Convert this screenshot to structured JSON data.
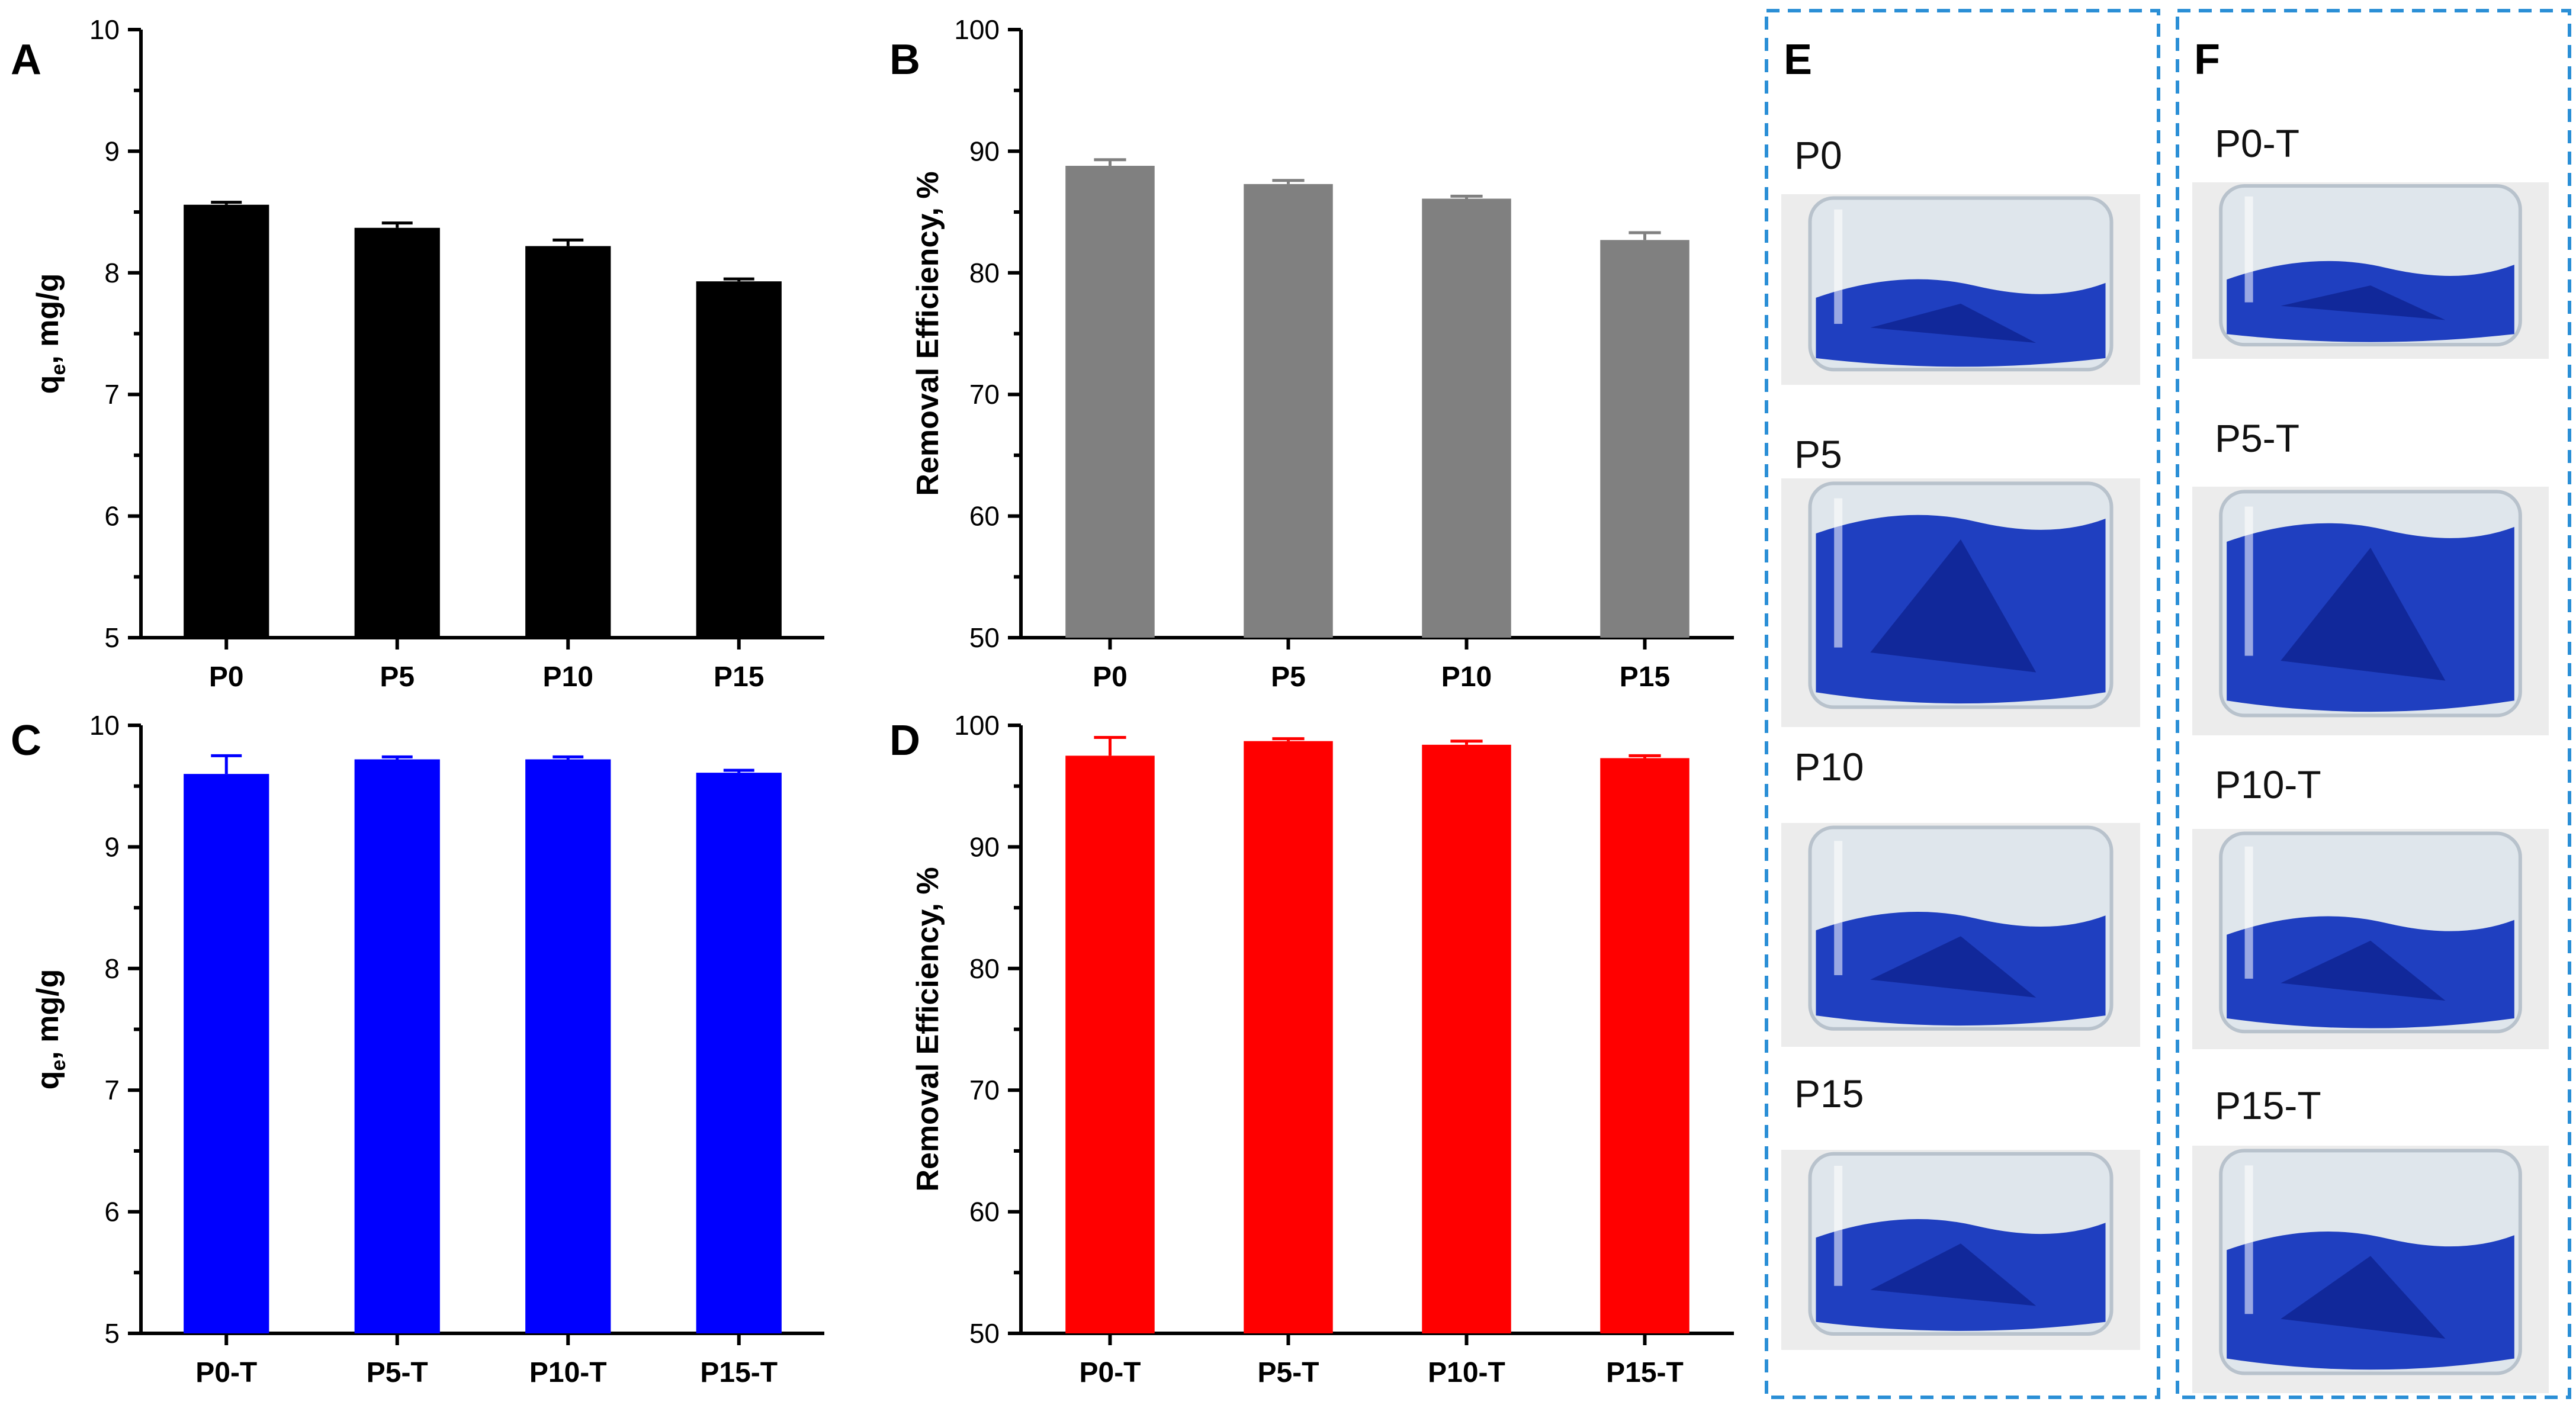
{
  "chart_data": [
    {
      "panel": "A",
      "type": "bar",
      "categories": [
        "P0",
        "P5",
        "P10",
        "P15"
      ],
      "values": [
        8.56,
        8.37,
        8.22,
        7.93
      ],
      "errors": [
        0.02,
        0.04,
        0.05,
        0.02
      ],
      "ylabel_main": "q",
      "ylabel_sub": "e",
      "ylabel_rest": ", mg/g",
      "ylim": [
        5,
        10
      ],
      "yticks": [
        "5",
        "6",
        "7",
        "8",
        "9",
        "10"
      ],
      "color": "#000000",
      "error_color": "#000000"
    },
    {
      "panel": "B",
      "type": "bar",
      "categories": [
        "P0",
        "P5",
        "P10",
        "P15"
      ],
      "values": [
        88.8,
        87.3,
        86.1,
        82.7
      ],
      "errors": [
        0.5,
        0.3,
        0.2,
        0.6
      ],
      "ylabel": "Removal Efficiency, %",
      "ylim": [
        50,
        100
      ],
      "yticks": [
        "50",
        "60",
        "70",
        "80",
        "90",
        "100"
      ],
      "color": "#808080",
      "error_color": "#808080"
    },
    {
      "panel": "C",
      "type": "bar",
      "categories": [
        "P0-T",
        "P5-T",
        "P10-T",
        "P15-T"
      ],
      "values": [
        9.6,
        9.72,
        9.72,
        9.61
      ],
      "errors": [
        0.15,
        0.02,
        0.02,
        0.02
      ],
      "ylabel_main": "q",
      "ylabel_sub": "e",
      "ylabel_rest": ", mg/g",
      "ylim": [
        5,
        10
      ],
      "yticks": [
        "5",
        "6",
        "7",
        "8",
        "9",
        "10"
      ],
      "color": "#0000ff",
      "error_color": "#0000ff"
    },
    {
      "panel": "D",
      "type": "bar",
      "categories": [
        "P0-T",
        "P5-T",
        "P10-T",
        "P15-T"
      ],
      "values": [
        97.5,
        98.7,
        98.4,
        97.3
      ],
      "errors": [
        1.5,
        0.2,
        0.3,
        0.2
      ],
      "ylabel": "Removal Efficiency, %",
      "ylim": [
        50,
        100
      ],
      "yticks": [
        "50",
        "60",
        "70",
        "80",
        "90",
        "100"
      ],
      "color": "#ff0000",
      "error_color": "#ff0000"
    }
  ],
  "photo_panels": [
    {
      "panel": "E",
      "labels": [
        "P0",
        "P5",
        "P10",
        "P15"
      ]
    },
    {
      "panel": "F",
      "labels": [
        "P0-T",
        "P5-T",
        "P10-T",
        "P15-T"
      ]
    }
  ],
  "colors": {
    "dashed_border": "#2b8fd6",
    "dye_blue": "#1f3fc0",
    "dye_dark": "#0b1f8a"
  }
}
